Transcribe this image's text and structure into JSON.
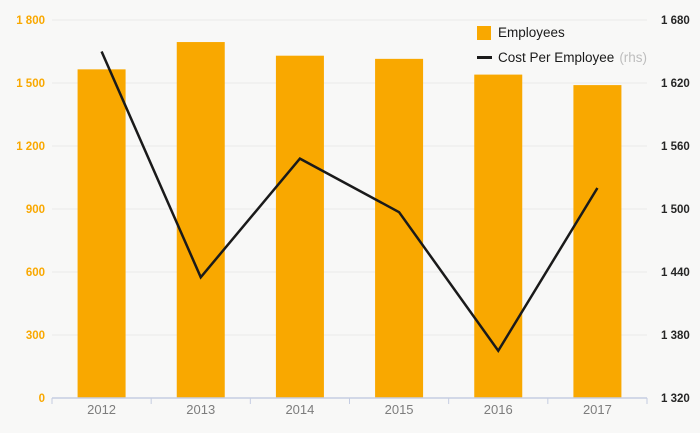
{
  "chart_data": {
    "type": "bar",
    "subtype": "combo-bar-line",
    "categories": [
      "2012",
      "2013",
      "2014",
      "2015",
      "2016",
      "2017"
    ],
    "series": [
      {
        "name": "Employees",
        "type": "bar",
        "axis": "left",
        "color": "#f9a800",
        "values": [
          1565,
          1695,
          1630,
          1615,
          1540,
          1490
        ]
      },
      {
        "name": "Cost Per Employee",
        "type": "line",
        "axis": "right",
        "color": "#1a1a1a",
        "values": [
          1650,
          1435,
          1548,
          1497,
          1365,
          1520
        ]
      }
    ],
    "title": "",
    "xlabel": "",
    "ylabel": "",
    "grid": true,
    "legend_position": "top-right",
    "left_axis": {
      "min": 0,
      "max": 1800,
      "tick_labels_top_down": [
        "1 800",
        "1 500",
        "1 200",
        "900",
        "600",
        "300",
        "0"
      ],
      "label_color": "#f9a800"
    },
    "right_axis": {
      "min": 1320,
      "max": 1680,
      "tick_labels_top_down": [
        "1 680",
        "1 620",
        "1 560",
        "1 500",
        "1 440",
        "1 380",
        "1 320"
      ],
      "label_color": "#262626"
    }
  },
  "legend": {
    "items": [
      {
        "label": "Employees",
        "suffix": "",
        "swatch": "square",
        "color": "#f9a800"
      },
      {
        "label": "Cost Per Employee",
        "suffix": "(rhs)",
        "swatch": "line",
        "color": "#1a1a1a"
      }
    ]
  },
  "colors": {
    "background": "#f8f8f7",
    "bar": "#f9a800",
    "line": "#1a1a1a",
    "gridline": "#eaeaea",
    "axis_line": "#c5cde2",
    "category_label": "#7d7d7d",
    "rhs_suffix": "#bdbdbd"
  }
}
